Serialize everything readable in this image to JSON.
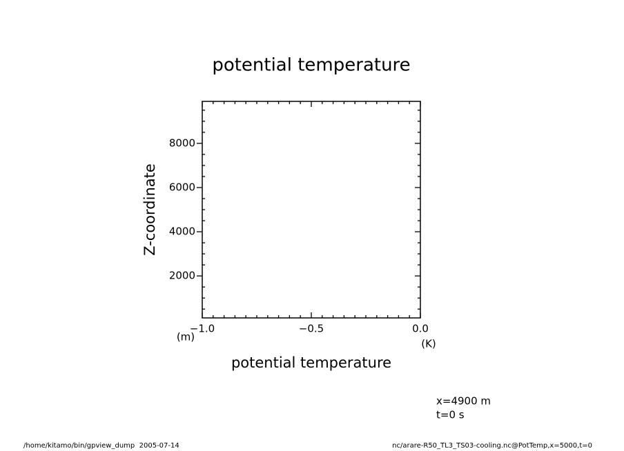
{
  "chart_data": {
    "type": "line",
    "title": "potential temperature",
    "x_label": "potential temperature",
    "y_label": "Z-coordinate",
    "x_unit": "(K)",
    "y_unit": "(m)",
    "series": [],
    "xlim": [
      -1,
      0
    ],
    "xticks": [
      {
        "value": -1,
        "label": "−1.0"
      },
      {
        "value": -0.5,
        "label": "−0.5"
      },
      {
        "value": 0,
        "label": "0.0"
      }
    ],
    "xminorticks": [
      -0.95,
      -0.9,
      -0.85,
      -0.8,
      -0.75,
      -0.7,
      -0.65,
      -0.6,
      -0.55,
      -0.45,
      -0.4,
      -0.35,
      -0.3,
      -0.25,
      -0.2,
      -0.15,
      -0.1,
      -0.05
    ],
    "ylim": [
      100,
      9900
    ],
    "yticks": [
      2000,
      4000,
      6000,
      8000
    ],
    "yminorticks": [
      500,
      1000,
      1500,
      2500,
      3000,
      3500,
      4500,
      5000,
      5500,
      6500,
      7000,
      7500,
      8500,
      9000,
      9500
    ],
    "grid": false,
    "annotations": [
      "x=4900 m",
      "t=0 s"
    ],
    "footer_left": "/home/kitamo/bin/gpview_dump  2005-07-14",
    "footer_right": "nc/arare-R50_TL3_TS03-cooling.nc@PotTemp,x=5000,t=0"
  }
}
